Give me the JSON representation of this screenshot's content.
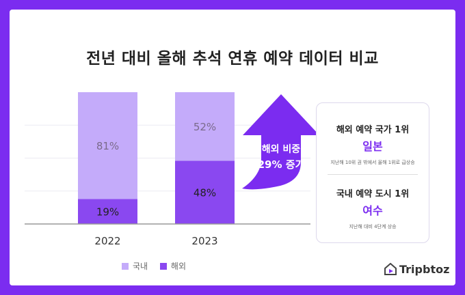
{
  "title": "전년 대비 올해 추석 연휴 예약 데이터 비교",
  "colors": {
    "domestic": "#c4abfa",
    "overseas": "#8a48f0",
    "frame": "#7b2cf0",
    "accent": "#7b2cf0"
  },
  "chart_data": {
    "type": "bar",
    "stacked": true,
    "categories": [
      "2022",
      "2023"
    ],
    "series": [
      {
        "name": "해외",
        "values": [
          19,
          48
        ],
        "labels": [
          "19%",
          "48%"
        ]
      },
      {
        "name": "국내",
        "values": [
          81,
          52
        ],
        "labels": [
          "81%",
          "52%"
        ]
      }
    ],
    "ylim": [
      0,
      100
    ],
    "grid": true,
    "legend_position": "bottom-left"
  },
  "arrow": {
    "line1": "해외 비중",
    "line2": "29% 증가"
  },
  "info": {
    "section1": {
      "heading": "해외 예약 국가 1위",
      "value": "일본",
      "note": "지난해 10위 권 밖에서 올해 1위로 급상승"
    },
    "section2": {
      "heading": "국내 예약 도시 1위",
      "value": "여수",
      "note": "지난해 대비 4단계 상승"
    }
  },
  "legend": {
    "domestic": "국내",
    "overseas": "해외"
  },
  "brand": {
    "name": "Tripbtoz",
    "icon": "tripbtoz-logo-icon"
  }
}
